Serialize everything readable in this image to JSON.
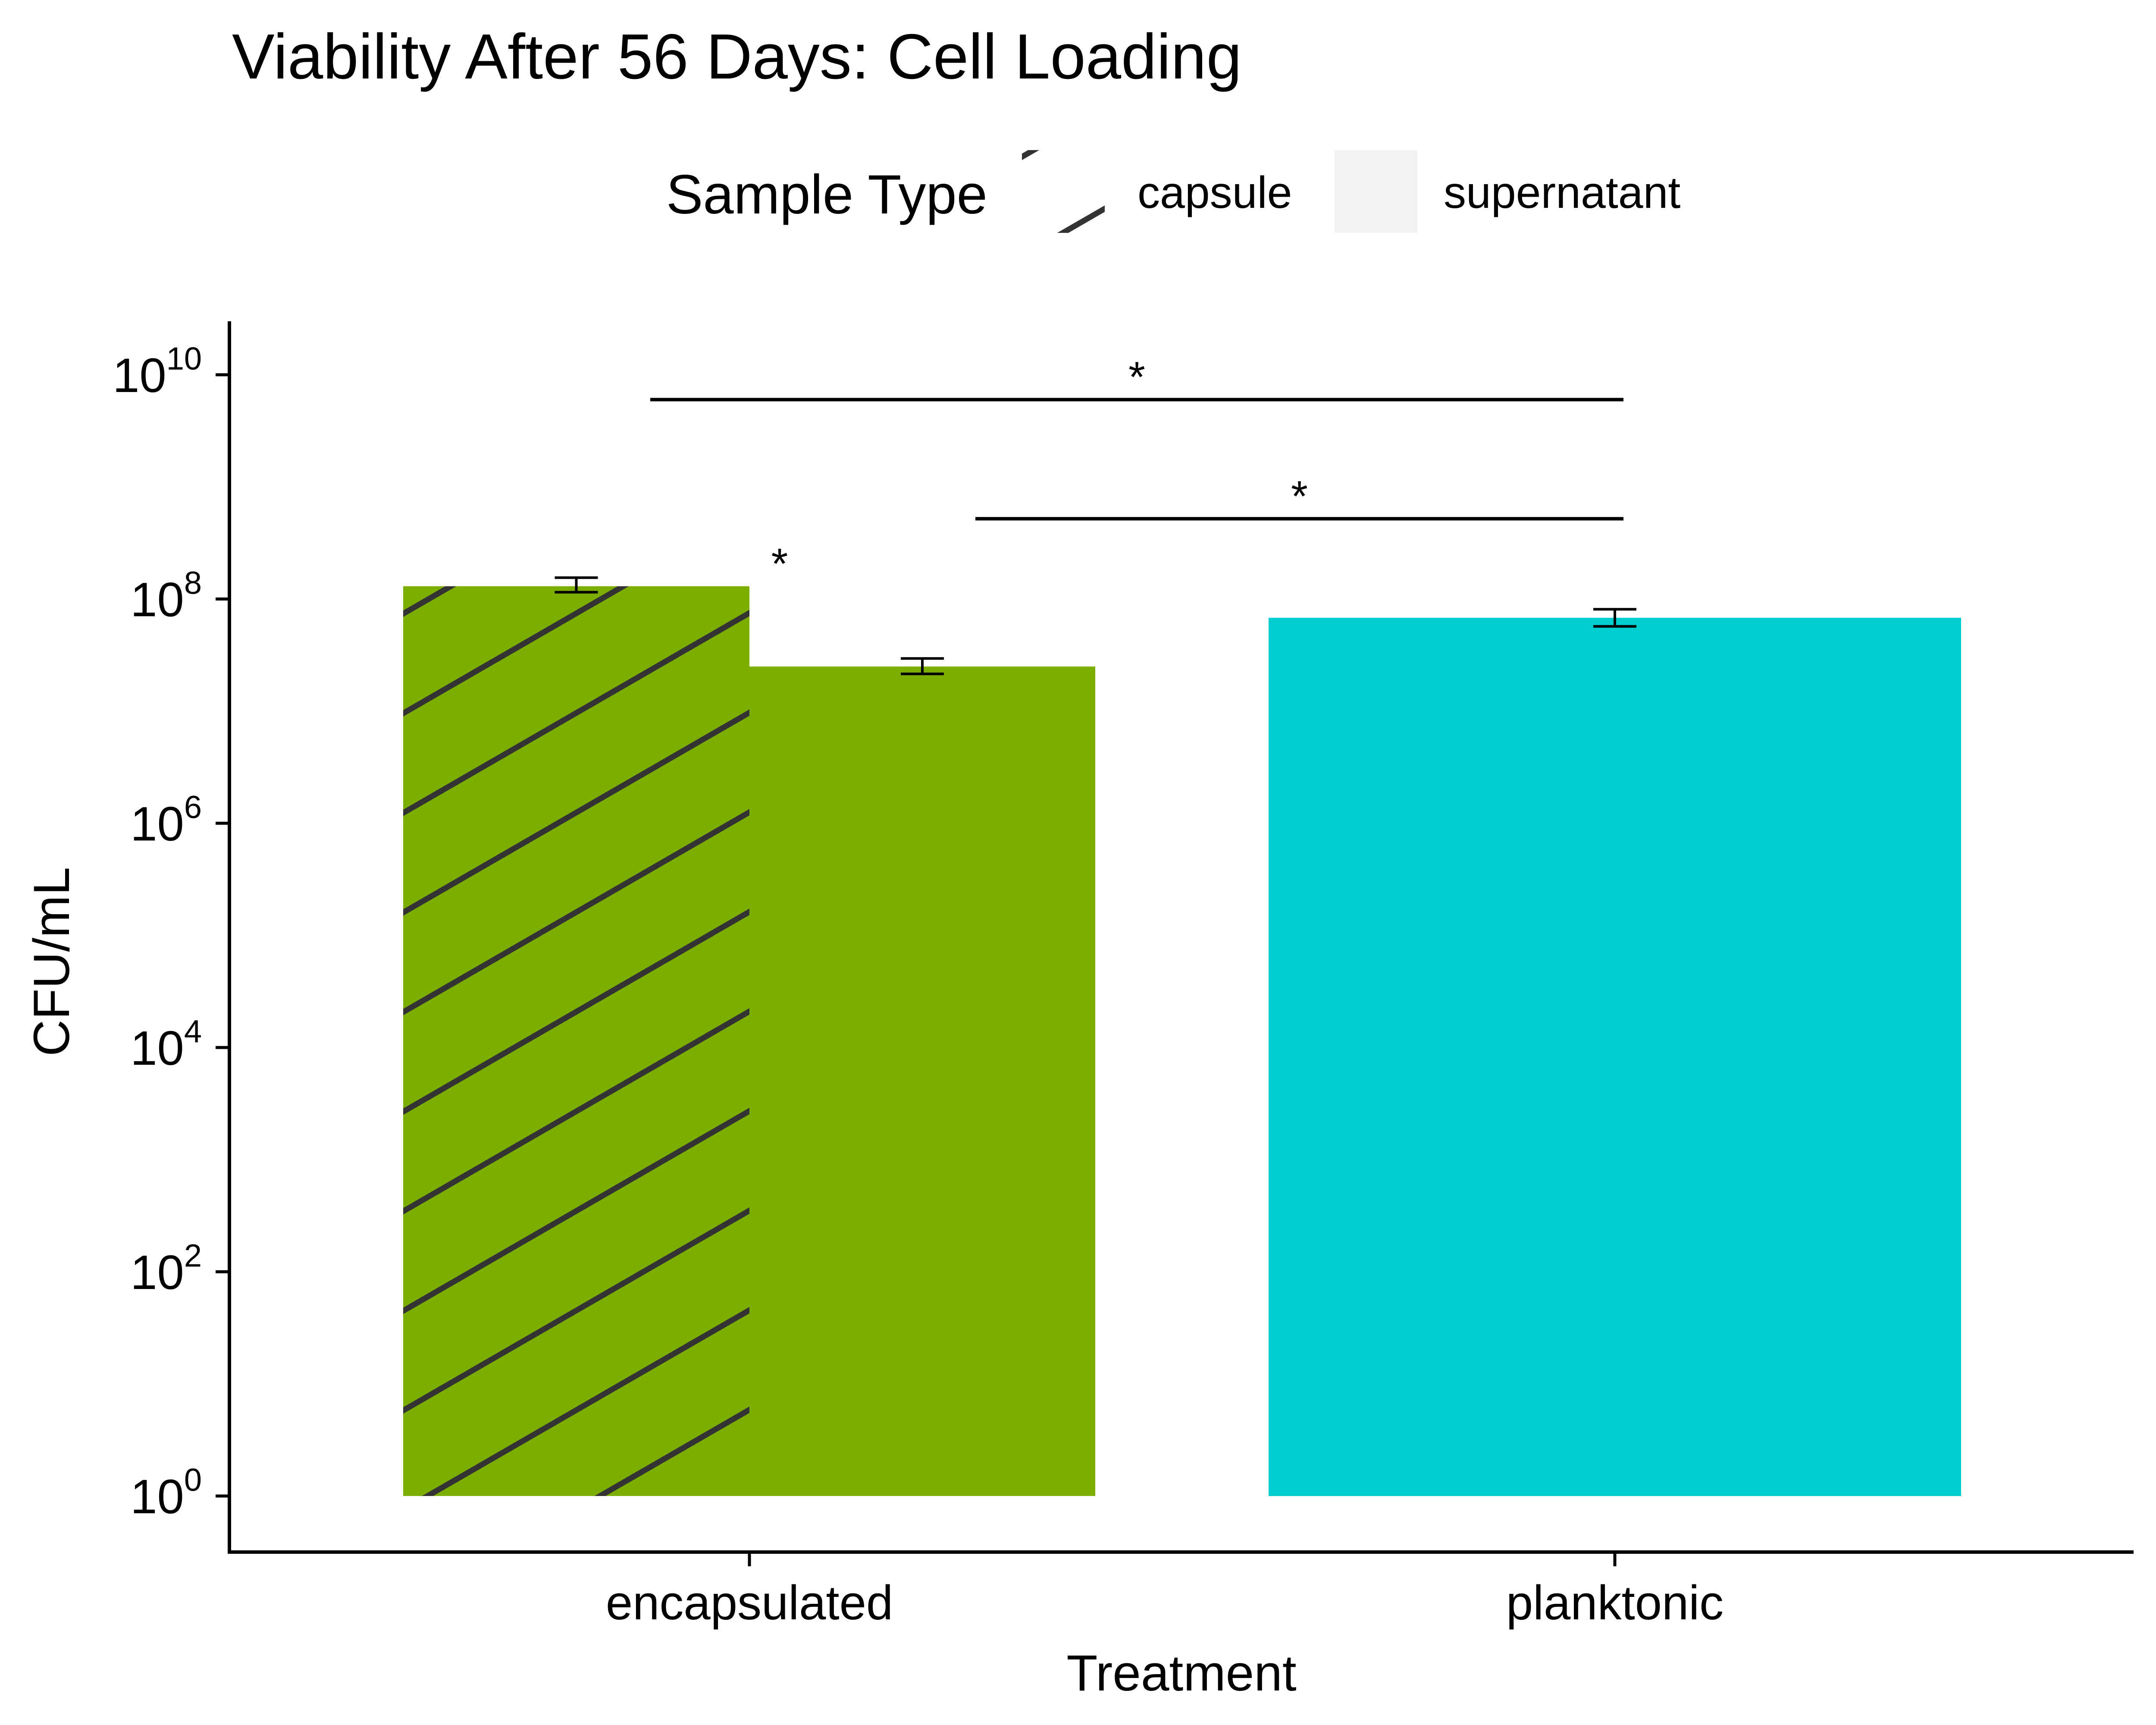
{
  "chart_data": {
    "type": "bar",
    "title": "Viability After 56 Days: Cell Loading",
    "xlabel": "Treatment",
    "ylabel": "CFU/mL",
    "y_scale": "log10",
    "ylim": [
      0.2,
      20000000000
    ],
    "y_ticks": [
      {
        "base": "10",
        "exponent": "0",
        "value": 1
      },
      {
        "base": "10",
        "exponent": "2",
        "value": 100
      },
      {
        "base": "10",
        "exponent": "4",
        "value": 10000
      },
      {
        "base": "10",
        "exponent": "6",
        "value": 1000000
      },
      {
        "base": "10",
        "exponent": "8",
        "value": 100000000
      },
      {
        "base": "10",
        "exponent": "10",
        "value": 10000000000
      }
    ],
    "categories": [
      "encapsulated",
      "planktonic"
    ],
    "legend": {
      "title": "Sample Type",
      "placement": "top",
      "entries": [
        {
          "label": "capsule",
          "pattern": "stripe"
        },
        {
          "label": "supernatant",
          "pattern": "none"
        }
      ]
    },
    "colors": {
      "encapsulated": "#7CAE00",
      "planktonic": "#00CDCD",
      "stripe": "#333333",
      "legend_key_bg": "#F2F2F2"
    },
    "bars": [
      {
        "category": "encapsulated",
        "sample_type": "capsule",
        "value": 130000000,
        "err_low": 115000000,
        "err_high": 155000000
      },
      {
        "category": "encapsulated",
        "sample_type": "supernatant",
        "value": 25000000,
        "err_low": 21500000,
        "err_high": 29500000
      },
      {
        "category": "planktonic",
        "sample_type": "",
        "value": 68000000,
        "err_low": 57000000,
        "err_high": 81000000
      }
    ],
    "significance": [
      {
        "label": "*",
        "from": "encapsulated",
        "to": "planktonic",
        "level": 6000000000
      },
      {
        "label": "*",
        "from": "encapsulated supernatant",
        "to": "planktonic",
        "level": 520000000
      },
      {
        "label": "*",
        "from": "encapsulated capsule",
        "to": "encapsulated supernatant",
        "level": 130000000
      }
    ]
  }
}
